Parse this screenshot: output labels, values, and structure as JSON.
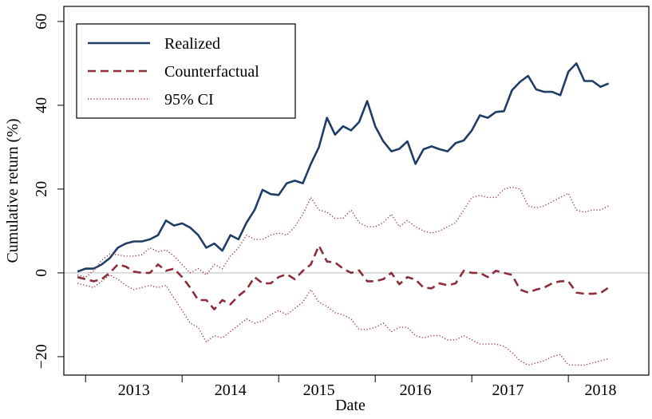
{
  "chart_data": {
    "type": "line",
    "xlabel": "Date",
    "ylabel": "Cumulative return (%)",
    "xlim": [
      -1.7,
      71
    ],
    "xticks": [
      {
        "value": 7,
        "label": "2013"
      },
      {
        "value": 19,
        "label": "2014"
      },
      {
        "value": 30,
        "label": "2015"
      },
      {
        "value": 42,
        "label": "2016"
      },
      {
        "value": 53.5,
        "label": "2017"
      },
      {
        "value": 65,
        "label": "2018"
      }
    ],
    "xticks_minor": [
      1,
      13,
      25,
      37,
      49,
      61
    ],
    "ylim": [
      -24.4,
      63.6
    ],
    "yticks": [
      {
        "value": -20,
        "label": "−20"
      },
      0,
      20,
      40,
      60
    ],
    "reference_line": 0,
    "legend": "upper left",
    "series": [
      {
        "name": "Realized",
        "color": "#1f3d66",
        "style": "solid",
        "values": [
          0.3,
          1,
          1,
          2,
          3.5,
          6,
          7,
          7.5,
          7.5,
          8,
          9,
          12.5,
          11.3,
          11.8,
          10.8,
          9,
          6,
          7,
          5.3,
          9,
          8,
          12,
          15,
          19.8,
          18.8,
          18.6,
          21.4,
          22,
          21.4,
          26,
          30,
          37,
          33,
          35,
          34,
          36,
          41,
          35,
          31.4,
          29,
          29.6,
          31.4,
          26,
          29.5,
          30.2,
          29.5,
          29,
          31,
          31.6,
          34,
          37.6,
          37,
          38.4,
          38.6,
          43.6,
          45.6,
          47,
          43.8,
          43.2,
          43.2,
          42.4,
          48,
          50,
          45.8,
          45.8,
          44.4,
          45.2
        ]
      },
      {
        "name": "Counterfactual",
        "color": "#8b2e3a",
        "style": "dashed",
        "values": [
          -1,
          -1.5,
          -2,
          -1.5,
          0,
          2,
          1.5,
          0.3,
          0,
          0,
          2,
          0.5,
          1,
          -1,
          -3.5,
          -6.5,
          -6.5,
          -8.7,
          -6.5,
          -7.5,
          -5.5,
          -4,
          -1,
          -2.5,
          -2.5,
          -1,
          -0.3,
          -1.5,
          0.5,
          2,
          6.5,
          2.7,
          2.5,
          1,
          0,
          0.6,
          -2,
          -2,
          -1.5,
          0,
          -2.7,
          -1,
          -1.6,
          -3.5,
          -3.7,
          -2.5,
          -3,
          -2.5,
          0.5,
          0,
          0,
          -1,
          0.5,
          0,
          -0.5,
          -4,
          -4.7,
          -4,
          -3.5,
          -2.5,
          -2,
          -2,
          -4.7,
          -5,
          -5,
          -4.8,
          -3.5
        ]
      },
      {
        "name": "95% CI",
        "color": "#a3313f",
        "style": "dotted",
        "upper": [
          -0.5,
          -1,
          0.5,
          3,
          4.5,
          4.3,
          4,
          4,
          4.3,
          6,
          5,
          5.5,
          4,
          2,
          0,
          1,
          -0.5,
          2,
          1,
          4,
          6,
          9,
          8,
          8,
          9,
          9.5,
          9,
          11,
          14,
          18,
          15,
          14.5,
          13,
          13,
          15,
          12,
          11,
          11,
          12,
          14,
          11,
          12.5,
          11,
          10,
          9.5,
          10,
          11,
          12,
          15,
          18,
          18.5,
          18,
          18,
          20,
          20.5,
          20,
          16,
          15.5,
          16,
          17,
          18,
          19,
          15,
          14.5,
          15,
          15,
          16
        ],
        "lower": [
          -2.5,
          -3,
          -3.5,
          -2,
          -0.5,
          -1.5,
          -3,
          -4,
          -3.5,
          -3,
          -3.5,
          -3,
          -6,
          -9,
          -12,
          -13,
          -16.5,
          -15,
          -15.5,
          -14,
          -12.5,
          -11,
          -12,
          -11.5,
          -10,
          -9,
          -10,
          -8.5,
          -7,
          -4,
          -7,
          -8,
          -9.5,
          -10,
          -11,
          -13.5,
          -13.5,
          -13,
          -12,
          -14,
          -13,
          -13,
          -15,
          -15.5,
          -15,
          -15,
          -16,
          -16,
          -15,
          -16,
          -17,
          -17,
          -17,
          -17.5,
          -19,
          -21,
          -22,
          -21.5,
          -21,
          -20,
          -19.5,
          -22,
          -22,
          -22,
          -21.5,
          -21,
          -20.5
        ]
      }
    ]
  }
}
